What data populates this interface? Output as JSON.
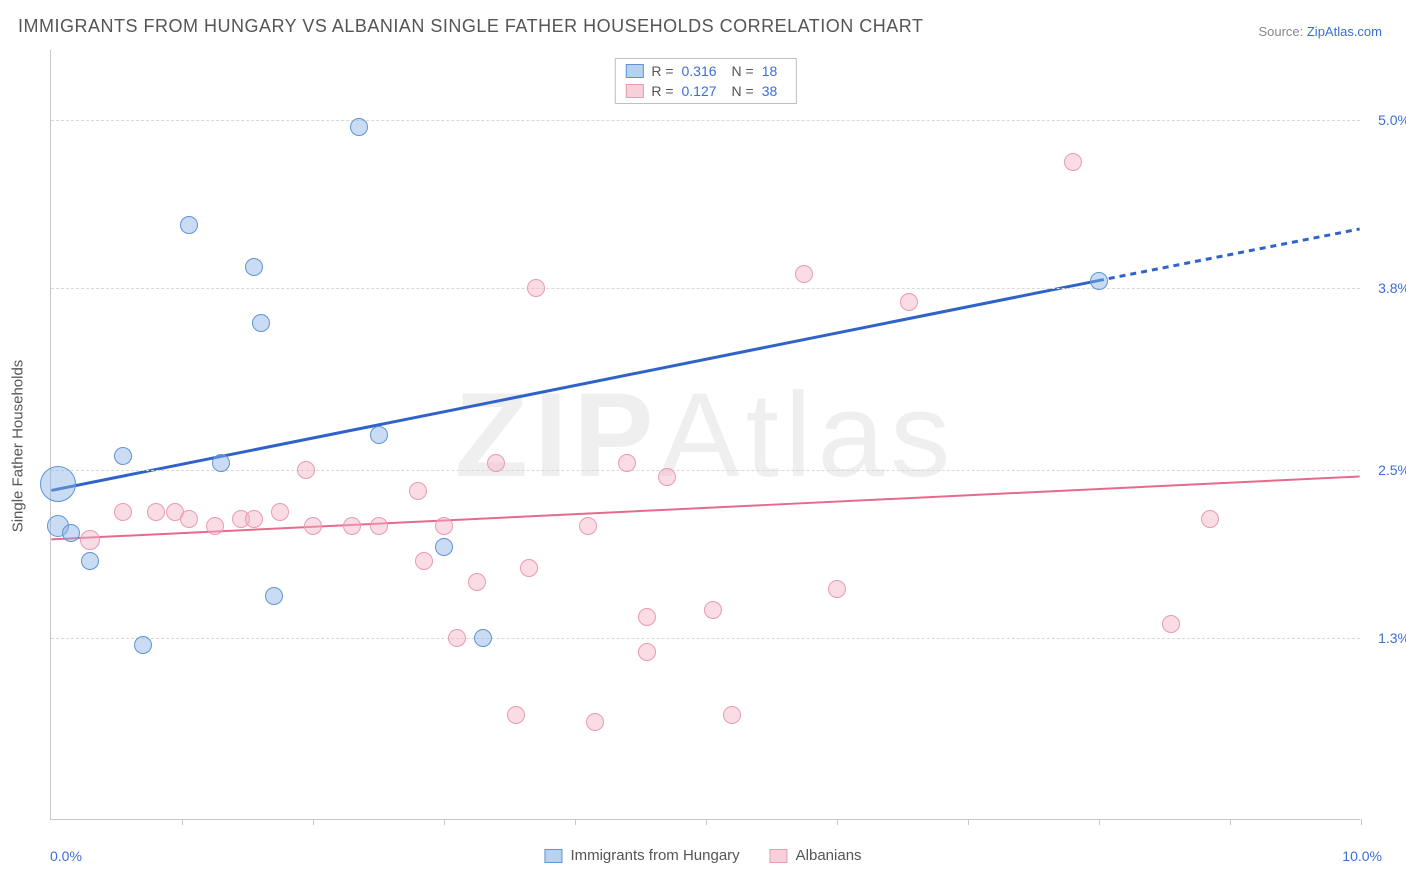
{
  "title": "IMMIGRANTS FROM HUNGARY VS ALBANIAN SINGLE FATHER HOUSEHOLDS CORRELATION CHART",
  "source_label": "Source: ",
  "source_name": "ZipAtlas.com",
  "watermark_a": "ZIP",
  "watermark_b": "Atlas",
  "y_axis_title": "Single Father Households",
  "chart": {
    "type": "scatter",
    "background_color": "#ffffff",
    "grid_color": "#d8d8d8",
    "axis_color": "#c8c8c8",
    "tick_label_color": "#3a6fd8",
    "axis_title_color": "#555555",
    "xlim": [
      0.0,
      10.0
    ],
    "ylim": [
      0.0,
      5.5
    ],
    "x_min_label": "0.0%",
    "x_max_label": "10.0%",
    "y_ticks": [
      {
        "value": 1.3,
        "label": "1.3%"
      },
      {
        "value": 2.5,
        "label": "2.5%"
      },
      {
        "value": 3.8,
        "label": "3.8%"
      },
      {
        "value": 5.0,
        "label": "5.0%"
      }
    ],
    "x_tick_positions": [
      1.0,
      2.0,
      3.0,
      4.0,
      5.0,
      6.0,
      7.0,
      8.0,
      9.0,
      10.0
    ],
    "series": [
      {
        "key": "hungary",
        "name": "Immigrants from Hungary",
        "fill": "rgba(137,178,228,0.45)",
        "stroke": "#5f94d4",
        "swatch_fill": "#b9d1ee",
        "swatch_stroke": "#5f94d4",
        "marker_radius": 9,
        "r_label": "R =",
        "r_value": "0.316",
        "n_label": "N =",
        "n_value": "18",
        "trend": {
          "x1": 0.0,
          "y1": 2.35,
          "x2": 8.0,
          "y2": 3.85,
          "x3": 10.0,
          "y3": 4.22,
          "stroke": "#2f63c9",
          "width": 3
        },
        "points": [
          {
            "x": 0.05,
            "y": 2.4,
            "r": 18
          },
          {
            "x": 0.05,
            "y": 2.1,
            "r": 11
          },
          {
            "x": 0.15,
            "y": 2.05,
            "r": 9
          },
          {
            "x": 0.3,
            "y": 1.85,
            "r": 9
          },
          {
            "x": 0.55,
            "y": 2.6,
            "r": 9
          },
          {
            "x": 0.7,
            "y": 1.25,
            "r": 9
          },
          {
            "x": 1.05,
            "y": 4.25,
            "r": 9
          },
          {
            "x": 1.3,
            "y": 2.55,
            "r": 9
          },
          {
            "x": 1.55,
            "y": 3.95,
            "r": 9
          },
          {
            "x": 1.6,
            "y": 3.55,
            "r": 9
          },
          {
            "x": 1.7,
            "y": 1.6,
            "r": 9
          },
          {
            "x": 2.35,
            "y": 4.95,
            "r": 9
          },
          {
            "x": 2.5,
            "y": 2.75,
            "r": 9
          },
          {
            "x": 3.0,
            "y": 1.95,
            "r": 9
          },
          {
            "x": 3.3,
            "y": 1.3,
            "r": 9
          },
          {
            "x": 8.0,
            "y": 3.85,
            "r": 9
          }
        ]
      },
      {
        "key": "albanian",
        "name": "Albanians",
        "fill": "rgba(244,178,196,0.45)",
        "stroke": "#e99bb0",
        "swatch_fill": "#f8d0da",
        "swatch_stroke": "#e99bb0",
        "marker_radius": 9,
        "r_label": "R =",
        "r_value": "0.127",
        "n_label": "N =",
        "n_value": "38",
        "trend": {
          "x1": 0.0,
          "y1": 2.0,
          "x2": 10.0,
          "y2": 2.45,
          "stroke": "#e76a8d",
          "width": 2
        },
        "points": [
          {
            "x": 0.3,
            "y": 2.0,
            "r": 10
          },
          {
            "x": 0.55,
            "y": 2.2,
            "r": 9
          },
          {
            "x": 0.8,
            "y": 2.2,
            "r": 9
          },
          {
            "x": 0.95,
            "y": 2.2,
            "r": 9
          },
          {
            "x": 1.05,
            "y": 2.15,
            "r": 9
          },
          {
            "x": 1.25,
            "y": 2.1,
            "r": 9
          },
          {
            "x": 1.45,
            "y": 2.15,
            "r": 9
          },
          {
            "x": 1.55,
            "y": 2.15,
            "r": 9
          },
          {
            "x": 1.75,
            "y": 2.2,
            "r": 9
          },
          {
            "x": 1.95,
            "y": 2.5,
            "r": 9
          },
          {
            "x": 2.0,
            "y": 2.1,
            "r": 9
          },
          {
            "x": 2.3,
            "y": 2.1,
            "r": 9
          },
          {
            "x": 2.5,
            "y": 2.1,
            "r": 9
          },
          {
            "x": 2.8,
            "y": 2.35,
            "r": 9
          },
          {
            "x": 2.85,
            "y": 1.85,
            "r": 9
          },
          {
            "x": 3.0,
            "y": 2.1,
            "r": 9
          },
          {
            "x": 3.1,
            "y": 1.3,
            "r": 9
          },
          {
            "x": 3.25,
            "y": 1.7,
            "r": 9
          },
          {
            "x": 3.4,
            "y": 2.55,
            "r": 9
          },
          {
            "x": 3.55,
            "y": 0.75,
            "r": 9
          },
          {
            "x": 3.65,
            "y": 1.8,
            "r": 9
          },
          {
            "x": 3.7,
            "y": 3.8,
            "r": 9
          },
          {
            "x": 4.1,
            "y": 2.1,
            "r": 9
          },
          {
            "x": 4.15,
            "y": 0.7,
            "r": 9
          },
          {
            "x": 4.4,
            "y": 2.55,
            "r": 9
          },
          {
            "x": 4.55,
            "y": 1.45,
            "r": 9
          },
          {
            "x": 4.55,
            "y": 1.2,
            "r": 9
          },
          {
            "x": 4.7,
            "y": 2.45,
            "r": 9
          },
          {
            "x": 5.05,
            "y": 1.5,
            "r": 9
          },
          {
            "x": 5.2,
            "y": 0.75,
            "r": 9
          },
          {
            "x": 5.75,
            "y": 3.9,
            "r": 9
          },
          {
            "x": 6.0,
            "y": 1.65,
            "r": 9
          },
          {
            "x": 6.55,
            "y": 3.7,
            "r": 9
          },
          {
            "x": 7.8,
            "y": 4.7,
            "r": 9
          },
          {
            "x": 8.55,
            "y": 1.4,
            "r": 9
          },
          {
            "x": 8.85,
            "y": 2.15,
            "r": 9
          }
        ]
      }
    ]
  }
}
